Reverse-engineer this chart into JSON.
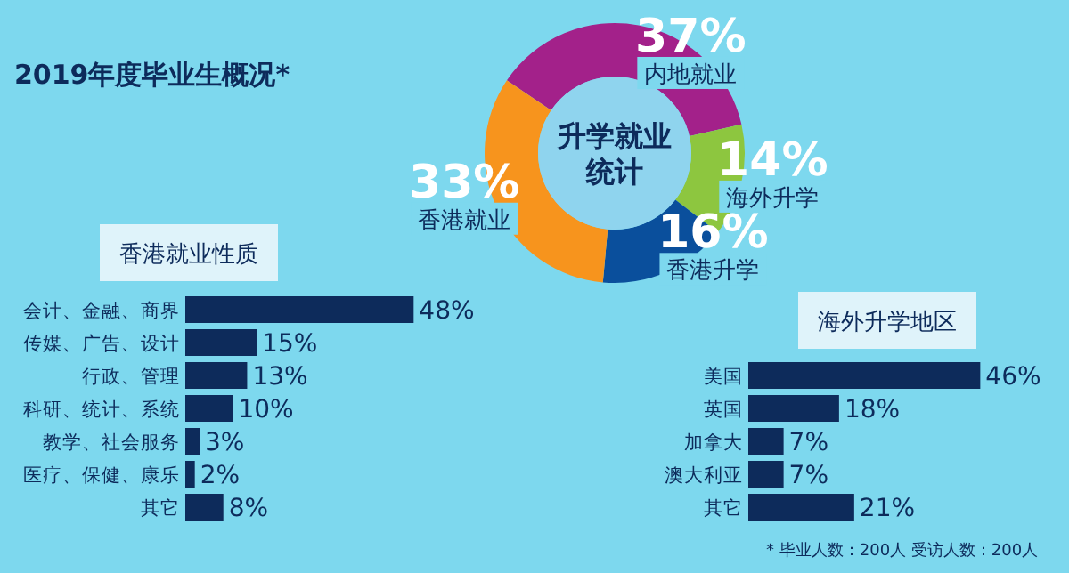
{
  "chart_data": [
    {
      "type": "donut",
      "title": "升学就业统计",
      "annotations": [
        "2019年度毕业生概况*"
      ],
      "categories": [
        "内地就业",
        "海外升学",
        "香港升学",
        "香港就业"
      ],
      "values": [
        37,
        14,
        16,
        33
      ],
      "value_labels": [
        "37%",
        "14%",
        "16%",
        "33%"
      ],
      "colors": [
        "#a3218a",
        "#8dc63f",
        "#0a4f9c",
        "#f7941d"
      ]
    },
    {
      "type": "bar",
      "orientation": "horizontal",
      "title": "香港就业性质",
      "categories": [
        "会计、金融、商界",
        "传媒、广告、设计",
        "行政、管理",
        "科研、统计、系统",
        "教学、社会服务",
        "医疗、保健、康乐",
        "其它"
      ],
      "values": [
        48,
        15,
        13,
        10,
        3,
        2,
        8
      ],
      "value_labels": [
        "48%",
        "15%",
        "13%",
        "10%",
        "3%",
        "2%",
        "8%"
      ],
      "color": "#0d2b5b"
    },
    {
      "type": "bar",
      "orientation": "horizontal",
      "title": "海外升学地区",
      "categories": [
        "美国",
        "英国",
        "加拿大",
        "澳大利亚",
        "其它"
      ],
      "values": [
        46,
        18,
        7,
        7,
        21
      ],
      "value_labels": [
        "46%",
        "18%",
        "7%",
        "7%",
        "21%"
      ],
      "color": "#0d2b5b",
      "annotations": [
        "* 毕业人数：200人  受访人数：200人"
      ]
    }
  ]
}
